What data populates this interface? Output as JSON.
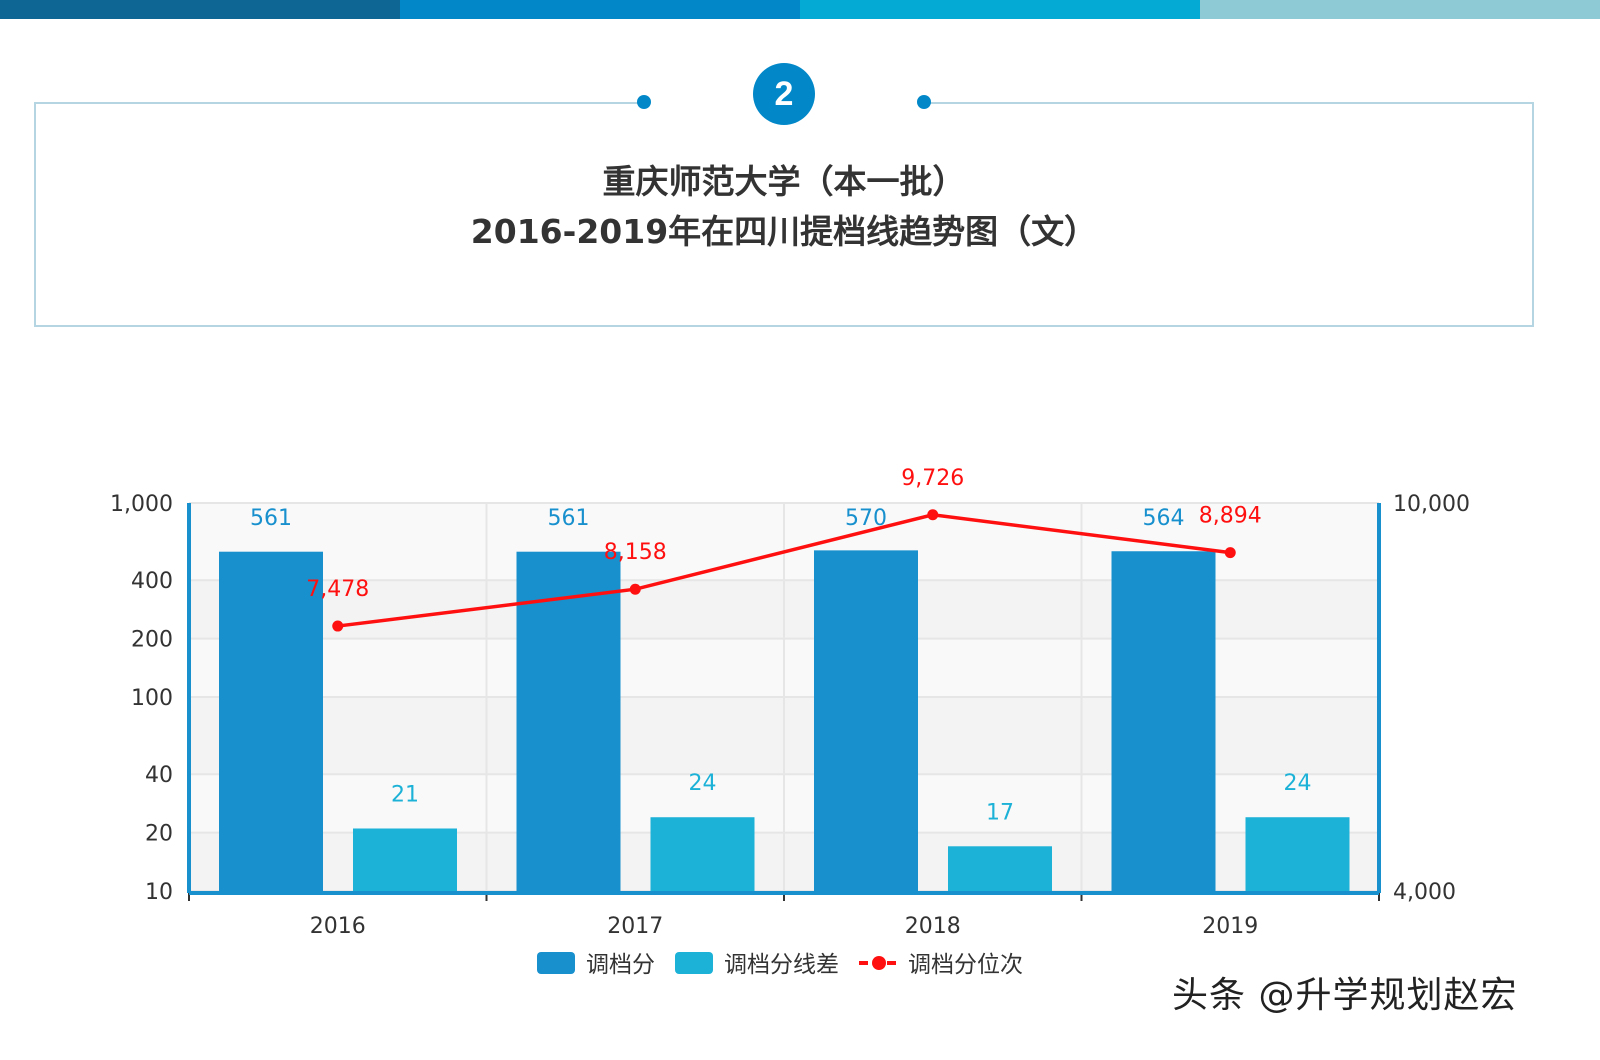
{
  "header": {
    "badge": "2",
    "title_line1": "重庆师范大学（本一批）",
    "title_line2": "2016-2019年在四川提档线趋势图（文）",
    "bar_colors": [
      "#0e6694",
      "#0288c9",
      "#04a9d4",
      "#8ecad6"
    ]
  },
  "watermark": "头条 @升学规划赵宏",
  "chart_data": {
    "type": "bar+line",
    "categories": [
      "2016",
      "2017",
      "2018",
      "2019"
    ],
    "series": [
      {
        "name": "调档分",
        "type": "bar",
        "axis": "left",
        "color": "#1890ce",
        "values": [
          561,
          561,
          570,
          564
        ],
        "labels": [
          "561",
          "561",
          "570",
          "564"
        ]
      },
      {
        "name": "调档分线差",
        "type": "bar",
        "axis": "left",
        "color": "#1cb1d7",
        "values": [
          21,
          24,
          17,
          24
        ],
        "labels": [
          "21",
          "24",
          "17",
          "24"
        ]
      },
      {
        "name": "调档分位次",
        "type": "line",
        "axis": "right",
        "color": "#ff1010",
        "values": [
          7478,
          8158,
          9726,
          8894
        ],
        "labels": [
          "7,478",
          "8,158",
          "9,726",
          "8,894"
        ]
      }
    ],
    "y_left": {
      "scale": "log",
      "range": [
        10,
        1000
      ],
      "ticks": [
        10,
        20,
        40,
        100,
        200,
        400,
        1000
      ],
      "tick_labels": [
        "10",
        "20",
        "40",
        "100",
        "200",
        "400",
        "1,000"
      ]
    },
    "y_right": {
      "scale": "log",
      "range": [
        4000,
        10000
      ],
      "ticks": [
        4000,
        10000
      ],
      "tick_labels": [
        "4,000",
        "10,000"
      ]
    },
    "grid": true,
    "legend": "bottom"
  }
}
